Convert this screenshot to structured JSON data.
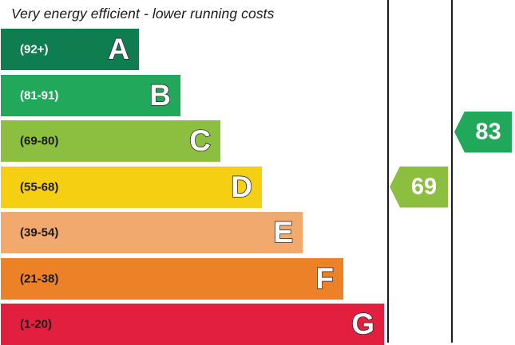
{
  "chart_data": {
    "type": "bar",
    "title": "Very energy efficient - lower running costs",
    "categories": [
      "A",
      "B",
      "C",
      "D",
      "E",
      "F",
      "G"
    ],
    "bands": [
      {
        "letter": "A",
        "range": "(92+)",
        "color": "#0f7d4f",
        "text_color": "#ffffff",
        "min": 92,
        "max": 100
      },
      {
        "letter": "B",
        "range": "(81-91)",
        "color": "#22a85a",
        "text_color": "#ffffff",
        "min": 81,
        "max": 91
      },
      {
        "letter": "C",
        "range": "(69-80)",
        "color": "#8cbf3f",
        "text_color": "#1a1a1a",
        "min": 69,
        "max": 80
      },
      {
        "letter": "D",
        "range": "(55-68)",
        "color": "#f5cf12",
        "text_color": "#1a1a1a",
        "min": 55,
        "max": 68
      },
      {
        "letter": "E",
        "range": "(39-54)",
        "color": "#f2a96d",
        "text_color": "#1a1a1a",
        "min": 39,
        "max": 54
      },
      {
        "letter": "F",
        "range": "(21-38)",
        "color": "#ec8128",
        "text_color": "#1a1a1a",
        "min": 21,
        "max": 38
      },
      {
        "letter": "G",
        "range": "(1-20)",
        "color": "#e21f3f",
        "text_color": "#1a1a1a",
        "min": 1,
        "max": 20
      }
    ],
    "current": {
      "value": "69",
      "band": "C",
      "color": "#8cbf3f"
    },
    "potential": {
      "value": "83",
      "band": "B",
      "color": "#22a85a"
    }
  }
}
